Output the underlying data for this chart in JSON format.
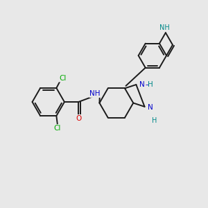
{
  "background_color": "#e8e8e8",
  "bond_color": "#1a1a1a",
  "atom_colors": {
    "Cl": "#00aa00",
    "O": "#dd0000",
    "N": "#0000cc",
    "NH_teal": "#008888",
    "C": "#1a1a1a"
  },
  "figsize": [
    3.0,
    3.0
  ],
  "dpi": 100
}
